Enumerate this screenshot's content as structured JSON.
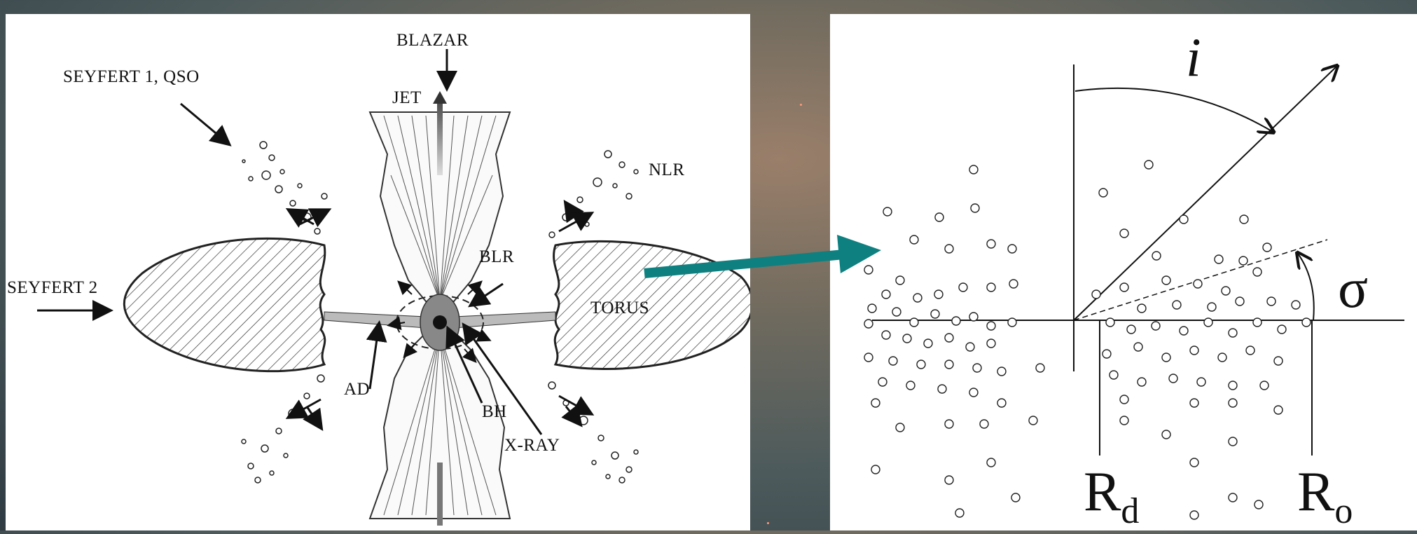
{
  "left_diagram": {
    "labels": {
      "blazar": "BLAZAR",
      "jet": "JET",
      "seyfert1": "SEYFERT 1, QSO",
      "seyfert2": "SEYFERT 2",
      "nlr": "NLR",
      "blr": "BLR",
      "torus": "TORUS",
      "ad": "AD",
      "bh": "BH",
      "xray": "X-RAY"
    }
  },
  "right_diagram": {
    "labels": {
      "inclination": "i",
      "sigma": "σ",
      "rd": "R",
      "rd_sub": "d",
      "ro": "R",
      "ro_sub": "o"
    }
  },
  "colors": {
    "connector_arrow": "#0f8080",
    "line": "#111111"
  }
}
